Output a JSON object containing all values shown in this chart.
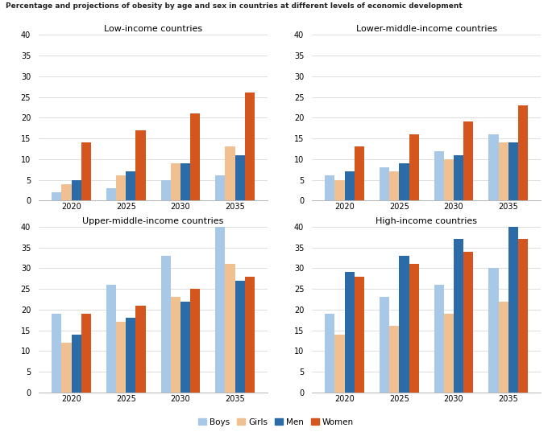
{
  "suptitle": "Percentage and projections of obesity by age and sex in countries at different levels of economic development",
  "panels": [
    {
      "title": "Low-income countries",
      "years": [
        2020,
        2025,
        2030,
        2035
      ],
      "boys": [
        2,
        3,
        5,
        6
      ],
      "girls": [
        4,
        6,
        9,
        13
      ],
      "men": [
        5,
        7,
        9,
        11
      ],
      "women": [
        14,
        17,
        21,
        26
      ]
    },
    {
      "title": "Lower-middle-income countries",
      "years": [
        2020,
        2025,
        2030,
        2035
      ],
      "boys": [
        6,
        8,
        12,
        16
      ],
      "girls": [
        5,
        7,
        10,
        14
      ],
      "men": [
        7,
        9,
        11,
        14
      ],
      "women": [
        13,
        16,
        19,
        23
      ]
    },
    {
      "title": "Upper-middle-income countries",
      "years": [
        2020,
        2025,
        2030,
        2035
      ],
      "boys": [
        19,
        26,
        33,
        40
      ],
      "girls": [
        12,
        17,
        23,
        31
      ],
      "men": [
        14,
        18,
        22,
        27
      ],
      "women": [
        19,
        21,
        25,
        28
      ]
    },
    {
      "title": "High-income countries",
      "years": [
        2020,
        2025,
        2030,
        2035
      ],
      "boys": [
        19,
        23,
        26,
        30
      ],
      "girls": [
        14,
        16,
        19,
        22
      ],
      "men": [
        29,
        33,
        37,
        40
      ],
      "women": [
        28,
        31,
        34,
        37
      ]
    }
  ],
  "colors": {
    "boys": "#a8c8e8",
    "girls": "#f0c090",
    "men": "#2b6ca8",
    "women": "#d4561e"
  },
  "ylim": [
    0,
    40
  ],
  "yticks": [
    0,
    5,
    10,
    15,
    20,
    25,
    30,
    35,
    40
  ],
  "bar_width": 0.18,
  "legend_labels": [
    "Boys",
    "Girls",
    "Men",
    "Women"
  ],
  "suptitle_fontsize": 6.5,
  "title_fontsize": 8,
  "tick_fontsize": 7,
  "legend_fontsize": 7.5
}
